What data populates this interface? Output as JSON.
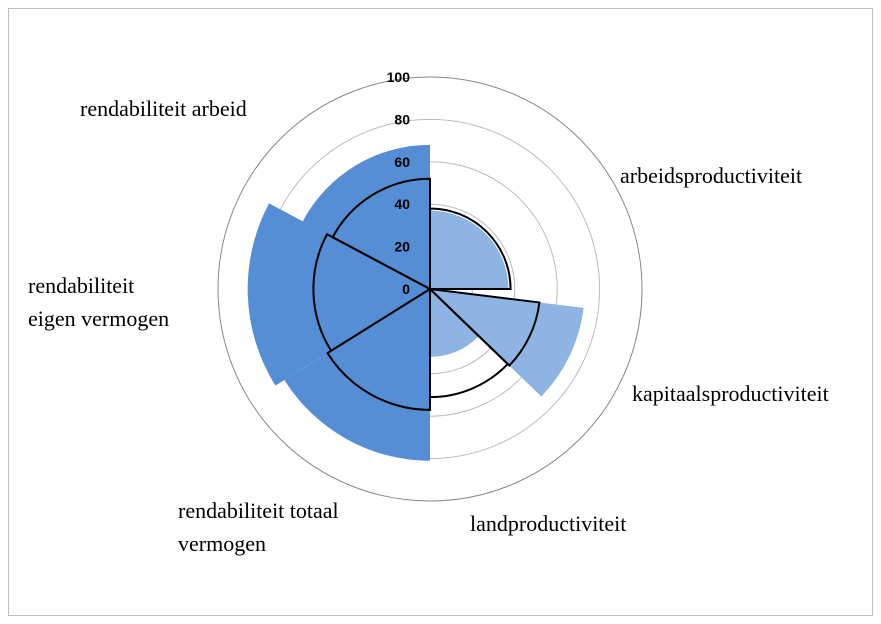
{
  "chart_data": {
    "type": "polar_area",
    "categories": [
      [
        "arbeidsproductiviteit"
      ],
      [
        "kapitaalsproductiviteit"
      ],
      [
        "landproductiviteit"
      ],
      [
        "rendabiliteit totaal",
        "vermogen"
      ],
      [
        "rendabiliteit",
        "eigen vermogen"
      ],
      [
        "rendabiliteit arbeid"
      ]
    ],
    "series": [
      {
        "style": "fill",
        "colors": [
          "#8eb4e3",
          "#8eb4e3",
          "#8eb4e3",
          "#558ed5",
          "#558ed5",
          "#558ed5"
        ],
        "values": [
          37,
          73,
          32,
          81,
          86,
          68
        ]
      },
      {
        "style": "outline",
        "color": "#000000",
        "values": [
          38,
          52,
          51,
          57,
          55,
          52
        ]
      }
    ],
    "ylim": [
      0,
      100
    ],
    "yticks": [
      0,
      20,
      40,
      60,
      80,
      100
    ],
    "grid": true
  }
}
